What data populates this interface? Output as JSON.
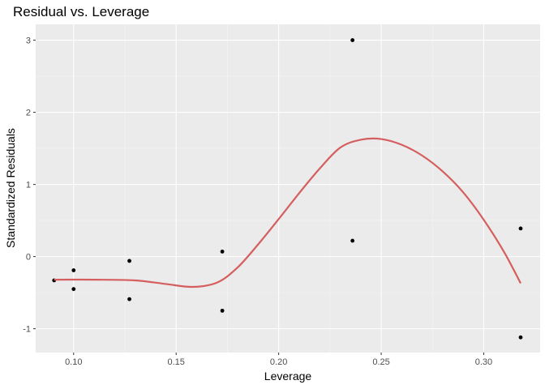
{
  "chart_data": {
    "type": "scatter",
    "title": "Residual vs. Leverage",
    "xlabel": "Leverage",
    "ylabel": "Standardized Residuals",
    "xlim": [
      0.0815,
      0.3275
    ],
    "ylim": [
      -1.33,
      3.22
    ],
    "x_ticks": [
      0.1,
      0.15,
      0.2,
      0.25,
      0.3
    ],
    "x_tick_labels": [
      "0.10",
      "0.15",
      "0.20",
      "0.25",
      "0.30"
    ],
    "y_ticks": [
      -1,
      0,
      1,
      2,
      3
    ],
    "y_tick_labels": [
      "-1",
      "0",
      "1",
      "2",
      "3"
    ],
    "grid": true,
    "points": [
      {
        "x": 0.0905,
        "y": -0.33
      },
      {
        "x": 0.1,
        "y": -0.19
      },
      {
        "x": 0.1,
        "y": -0.45
      },
      {
        "x": 0.1272,
        "y": -0.06
      },
      {
        "x": 0.1272,
        "y": -0.59
      },
      {
        "x": 0.1725,
        "y": 0.07
      },
      {
        "x": 0.1725,
        "y": -0.75
      },
      {
        "x": 0.236,
        "y": 3.0
      },
      {
        "x": 0.236,
        "y": 0.22
      },
      {
        "x": 0.318,
        "y": 0.39
      },
      {
        "x": 0.318,
        "y": -1.12
      }
    ],
    "smooth": {
      "color": "#d55e5e",
      "x": [
        0.0905,
        0.11,
        0.13,
        0.145,
        0.158,
        0.17,
        0.18,
        0.19,
        0.2,
        0.21,
        0.22,
        0.23,
        0.24,
        0.25,
        0.26,
        0.27,
        0.28,
        0.29,
        0.3,
        0.31,
        0.318
      ],
      "y": [
        -0.32,
        -0.32,
        -0.33,
        -0.38,
        -0.42,
        -0.36,
        -0.15,
        0.17,
        0.52,
        0.88,
        1.22,
        1.51,
        1.62,
        1.63,
        1.55,
        1.4,
        1.18,
        0.89,
        0.51,
        0.06,
        -0.37
      ]
    },
    "colors": {
      "panel": "#ebebeb",
      "grid_major": "#ffffff",
      "grid_minor": "#f5f5f5",
      "point": "#000000",
      "tick": "#333333"
    }
  }
}
